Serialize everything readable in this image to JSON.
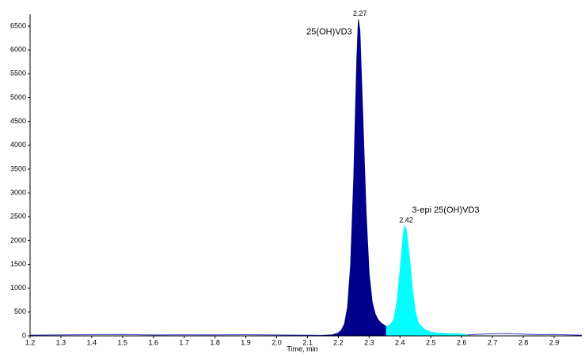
{
  "chart_data": {
    "type": "line",
    "xlabel": "Time, min",
    "xlim": [
      1.2,
      2.99
    ],
    "ylim": [
      0,
      6750
    ],
    "xticks": [
      1.2,
      1.3,
      1.4,
      1.5,
      1.6,
      1.7,
      1.8,
      1.9,
      {
        "value": 2,
        "label": "2.0"
      },
      2.1,
      2.2,
      2.3,
      2.4,
      2.5,
      2.6,
      2.7,
      2.8,
      2.9
    ],
    "yticks": [
      0,
      500,
      1000,
      1500,
      2000,
      2500,
      3000,
      3500,
      4000,
      4500,
      5000,
      5500,
      6000,
      6500
    ],
    "grid": false,
    "legend": false,
    "series": [
      {
        "name": "25(OH)VD3",
        "apex_time": 2.27,
        "color": "#00008b",
        "fill": true,
        "x": [
          2.15,
          2.18,
          2.2,
          2.21,
          2.22,
          2.23,
          2.24,
          2.25,
          2.26,
          2.265,
          2.27,
          2.28,
          2.29,
          2.3,
          2.31,
          2.32,
          2.33,
          2.34,
          2.35,
          2.355
        ],
        "values": [
          10,
          20,
          60,
          120,
          250,
          600,
          1500,
          3300,
          5800,
          6640,
          6400,
          4500,
          2600,
          1300,
          700,
          450,
          330,
          260,
          220,
          200
        ]
      },
      {
        "name": "3-epi 25(OH)VD3",
        "apex_time": 2.42,
        "color": "#00ffff",
        "fill": true,
        "x": [
          2.355,
          2.37,
          2.38,
          2.39,
          2.4,
          2.41,
          2.415,
          2.42,
          2.43,
          2.44,
          2.45,
          2.46,
          2.48,
          2.5,
          2.52,
          2.55,
          2.6,
          2.62
        ],
        "values": [
          200,
          240,
          350,
          700,
          1350,
          2100,
          2300,
          2250,
          1700,
          1000,
          500,
          260,
          130,
          80,
          60,
          50,
          40,
          20
        ]
      },
      {
        "color": "#3333cc",
        "fill": false,
        "x": [
          1.2,
          1.3,
          1.4,
          1.5,
          1.6,
          1.7,
          1.8,
          1.9,
          2.0,
          2.1,
          2.15,
          2.4,
          2.62,
          2.7,
          2.75,
          2.8,
          2.85,
          2.9,
          2.95,
          2.99
        ],
        "values": [
          15,
          20,
          25,
          30,
          18,
          22,
          20,
          25,
          18,
          15,
          10,
          null,
          20,
          45,
          50,
          35,
          25,
          30,
          20,
          15
        ]
      }
    ]
  }
}
